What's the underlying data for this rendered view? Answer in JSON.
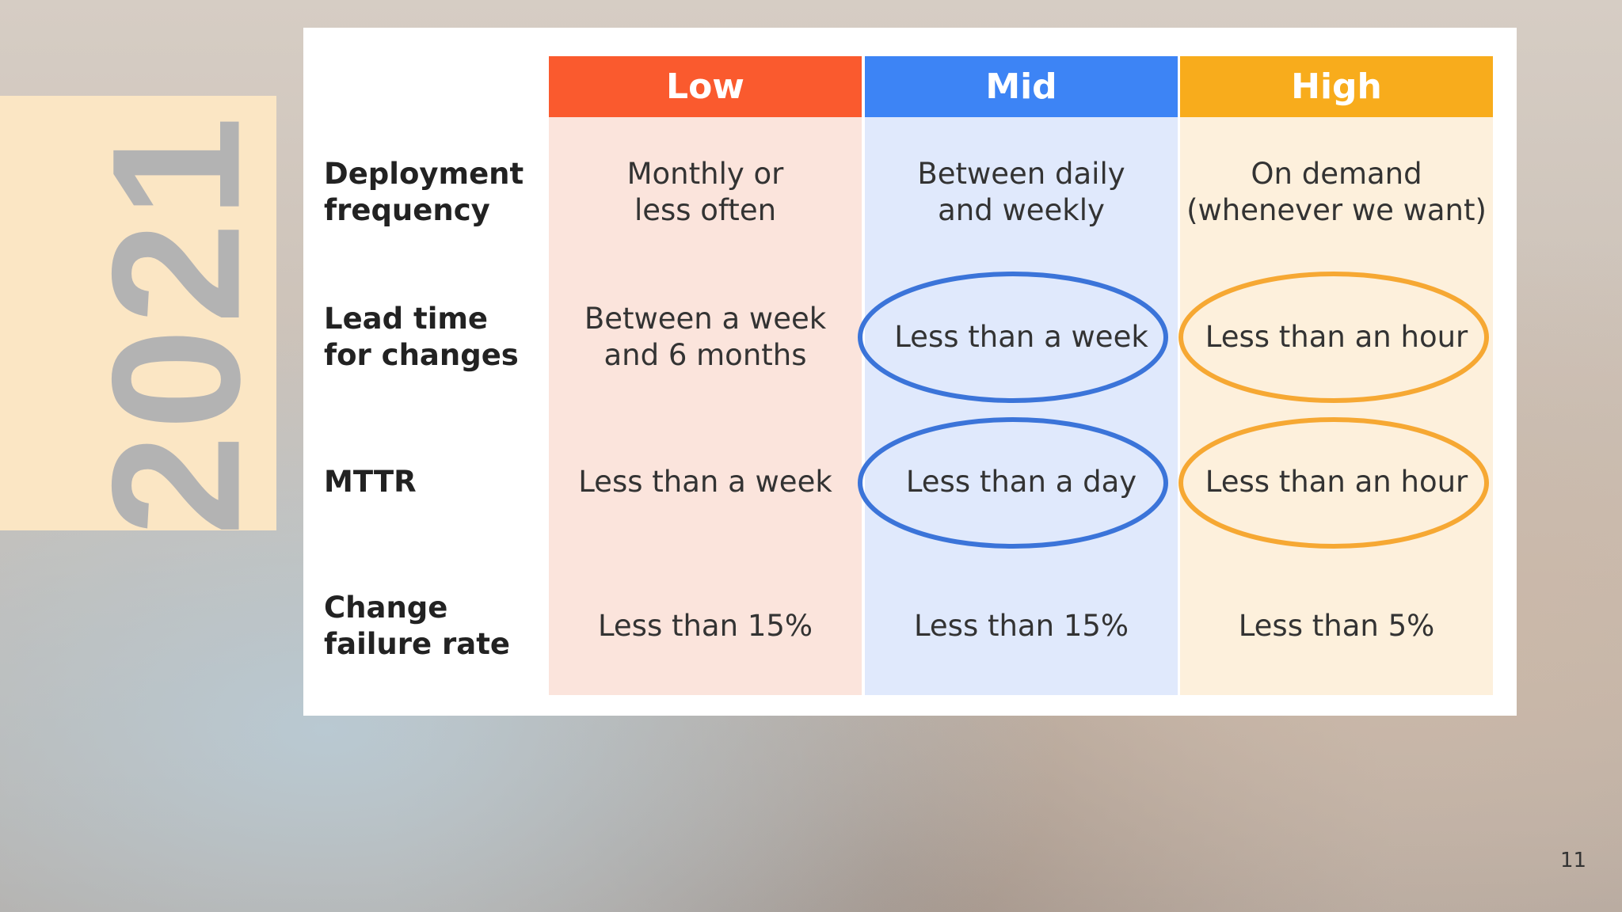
{
  "year": "2021",
  "table": {
    "columns": [
      "Low",
      "Mid",
      "High"
    ],
    "rows": [
      {
        "label": "Deployment\nfrequency",
        "cells": [
          "Monthly or\nless often",
          "Between daily\nand weekly",
          "On demand\n(whenever we want)"
        ]
      },
      {
        "label": "Lead time\nfor changes",
        "cells": [
          "Between a week\nand 6 months",
          "Less than a week",
          "Less than an hour"
        ]
      },
      {
        "label": "MTTR",
        "cells": [
          "Less than a week",
          "Less than a day",
          "Less than an hour"
        ]
      },
      {
        "label": "Change\nfailure rate",
        "cells": [
          "Less than 15%",
          "Less than 15%",
          "Less than 5%"
        ]
      }
    ]
  },
  "page_number": "11"
}
